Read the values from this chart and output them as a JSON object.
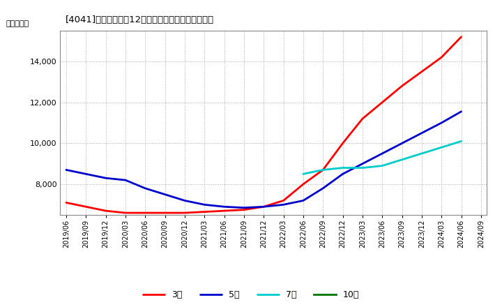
{
  "title": "[4041]　当期純利益12か月移動合計の平均値の推移",
  "ylabel": "（百万円）",
  "background_color": "#ffffff",
  "grid_color": "#aaaaaa",
  "ylim": [
    6500,
    15500
  ],
  "yticks": [
    8000,
    10000,
    12000,
    14000
  ],
  "series": {
    "3年": {
      "color": "#ff0000",
      "dates": [
        "2019/06",
        "2019/09",
        "2019/12",
        "2020/03",
        "2020/06",
        "2020/09",
        "2020/12",
        "2021/03",
        "2021/06",
        "2021/09",
        "2021/12",
        "2022/03",
        "2022/06",
        "2022/09",
        "2022/12",
        "2023/03",
        "2023/06",
        "2023/09",
        "2023/12",
        "2024/03",
        "2024/06"
      ],
      "values": [
        7100,
        6900,
        6700,
        6600,
        6600,
        6600,
        6600,
        6650,
        6700,
        6750,
        6900,
        7200,
        8000,
        8700,
        10000,
        11200,
        12000,
        12800,
        13500,
        14200,
        15200
      ]
    },
    "5年": {
      "color": "#0000cc",
      "dates": [
        "2019/06",
        "2019/09",
        "2019/12",
        "2020/03",
        "2020/06",
        "2020/09",
        "2020/12",
        "2021/03",
        "2021/06",
        "2021/09",
        "2021/12",
        "2022/03",
        "2022/06",
        "2022/09",
        "2022/12",
        "2023/03",
        "2023/06",
        "2023/09",
        "2023/12",
        "2024/03",
        "2024/06"
      ],
      "values": [
        8700,
        8500,
        8300,
        8200,
        7800,
        7500,
        7200,
        7000,
        6900,
        6850,
        6900,
        7000,
        7200,
        7800,
        8500,
        9000,
        9500,
        10000,
        10500,
        11000,
        11550
      ]
    },
    "7年": {
      "color": "#00cccc",
      "dates": [
        "2022/06",
        "2022/09",
        "2022/12",
        "2023/03",
        "2023/06",
        "2023/09",
        "2023/12",
        "2024/03",
        "2024/06"
      ],
      "values": [
        8500,
        8700,
        8800,
        8800,
        8900,
        9200,
        9500,
        9800,
        10100
      ]
    },
    "10年": {
      "color": "#007700",
      "dates": [],
      "values": []
    }
  },
  "xtick_labels": [
    "2019/06",
    "2019/09",
    "2019/12",
    "2020/03",
    "2020/06",
    "2020/09",
    "2020/12",
    "2021/03",
    "2021/06",
    "2021/09",
    "2021/12",
    "2022/03",
    "2022/06",
    "2022/09",
    "2022/12",
    "2023/03",
    "2023/06",
    "2023/09",
    "2023/12",
    "2024/03",
    "2024/06",
    "2024/09"
  ],
  "legend_order": [
    "3年",
    "5年",
    "7年",
    "10年"
  ],
  "linewidth": 2.0
}
